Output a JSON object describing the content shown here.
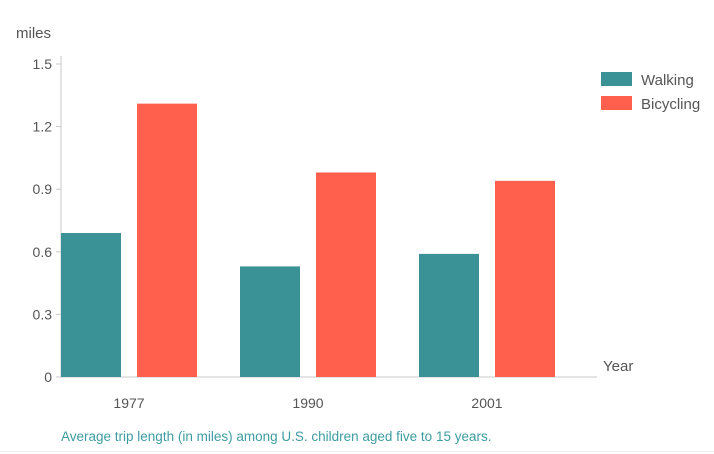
{
  "chart_data": {
    "type": "bar",
    "categories": [
      "1977",
      "1990",
      "2001"
    ],
    "series": [
      {
        "name": "Walking",
        "values": [
          0.69,
          0.53,
          0.59
        ],
        "color": "#3a9297"
      },
      {
        "name": "Bicycling",
        "values": [
          1.31,
          0.98,
          0.94
        ],
        "color": "#ff604d"
      }
    ],
    "xlabel": "Year",
    "ylabel": "miles",
    "ylim": [
      0,
      1.5
    ],
    "yticks": [
      0,
      0.3,
      0.6,
      0.9,
      1.2,
      1.5
    ],
    "ytick_labels": [
      "0",
      "0.3",
      "0.6",
      "0.9",
      "1.2",
      "1.5"
    ],
    "legend_position": "top-right",
    "grid": false
  },
  "caption": "Average trip length (in miles) among U.S. children aged five to 15 years.",
  "colors": {
    "axis": "#c8c8c8",
    "text": "#555555",
    "caption": "#3d9ca1"
  }
}
